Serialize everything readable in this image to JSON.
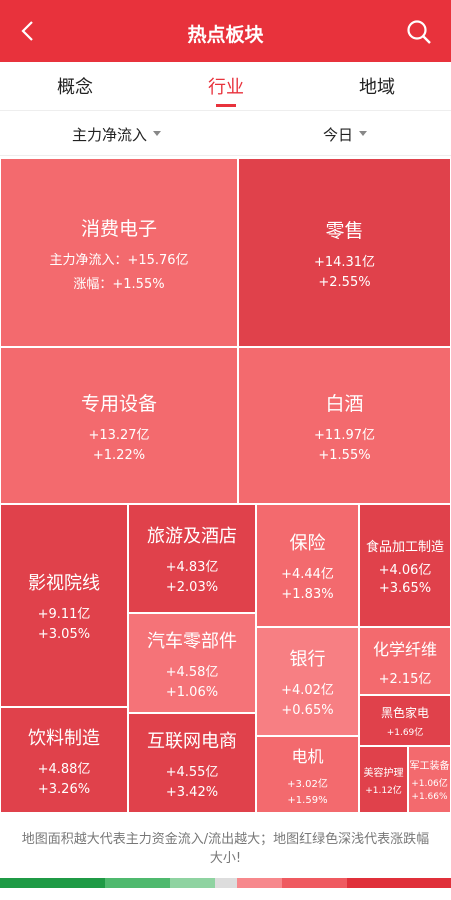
{
  "header": {
    "title": "热点板块"
  },
  "tabs": [
    {
      "label": "概念"
    },
    {
      "label": "行业",
      "active": true
    },
    {
      "label": "地域"
    }
  ],
  "filters": [
    {
      "label": "主力净流入"
    },
    {
      "label": "今日"
    }
  ],
  "tiles": [
    {
      "name": "消费电子",
      "flow": "主力净流入：+15.76亿",
      "change": "涨幅：+1.55%",
      "color": "#f36a6e"
    },
    {
      "name": "零售",
      "flow": "+14.31亿",
      "change": "+2.55%",
      "color": "#e0414b"
    },
    {
      "name": "专用设备",
      "flow": "+13.27亿",
      "change": "+1.22%",
      "color": "#f36a6e"
    },
    {
      "name": "白酒",
      "flow": "+11.97亿",
      "change": "+1.55%",
      "color": "#f36a6e"
    },
    {
      "name": "影视院线",
      "flow": "+9.11亿",
      "change": "+3.05%",
      "color": "#e0414b"
    },
    {
      "name": "饮料制造",
      "flow": "+4.88亿",
      "change": "+3.26%",
      "color": "#e0414b"
    },
    {
      "name": "旅游及酒店",
      "flow": "+4.83亿",
      "change": "+2.03%",
      "color": "#e0414b"
    },
    {
      "name": "汽车零部件",
      "flow": "+4.58亿",
      "change": "+1.06%",
      "color": "#f57378"
    },
    {
      "name": "互联网电商",
      "flow": "+4.55亿",
      "change": "+3.42%",
      "color": "#e0414b"
    },
    {
      "name": "保险",
      "flow": "+4.44亿",
      "change": "+1.83%",
      "color": "#f36a6e"
    },
    {
      "name": "银行",
      "flow": "+4.02亿",
      "change": "+0.65%",
      "color": "#f77f83"
    },
    {
      "name": "电机",
      "flow": "+3.02亿",
      "change": "+1.59%",
      "color": "#f36a6e"
    },
    {
      "name": "食品加工制造",
      "flow": "+4.06亿",
      "change": "+3.65%",
      "color": "#e0414b"
    },
    {
      "name": "化学纤维",
      "flow": "+2.15亿",
      "color": "#f36a6e"
    },
    {
      "name": "黑色家电",
      "flow": "+1.69亿",
      "color": "#e0414b"
    },
    {
      "name": "美容护理",
      "flow": "+1.12亿",
      "color": "#e0414b"
    },
    {
      "name": "军工装备",
      "flow": "+1.06亿",
      "change": "+1.66%",
      "color": "#f36a6e"
    }
  ],
  "footnote": "地图面积越大代表主力资金流入/流出越大；地图红绿色深浅代表涨跌幅大小!"
}
